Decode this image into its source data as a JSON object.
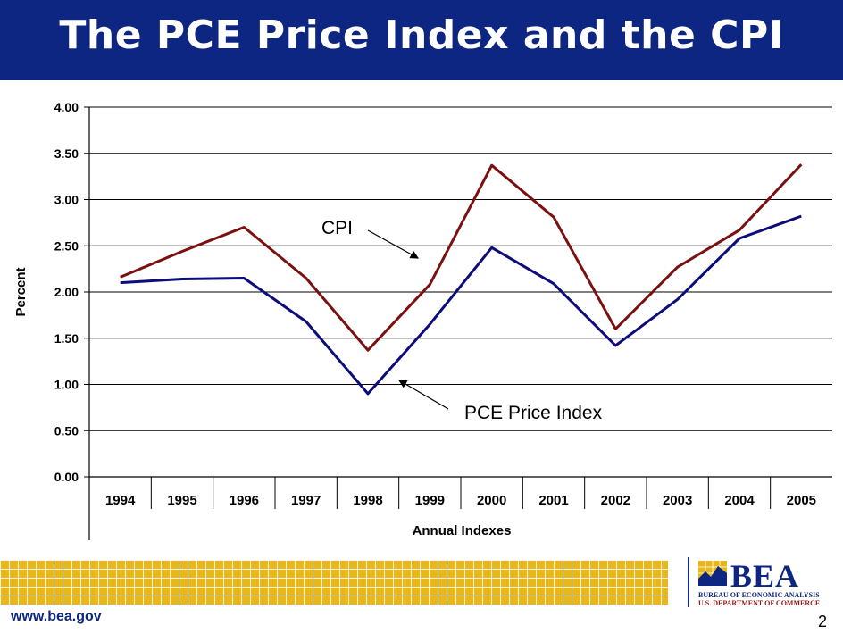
{
  "header": {
    "title": "The PCE Price Index and the CPI"
  },
  "chart_data": {
    "type": "line",
    "title": "",
    "xlabel": "Annual Indexes",
    "ylabel": "Percent",
    "categories": [
      "1994",
      "1995",
      "1996",
      "1997",
      "1998",
      "1999",
      "2000",
      "2001",
      "2002",
      "2003",
      "2004",
      "2005"
    ],
    "ylim": [
      0,
      4
    ],
    "yticks": [
      "0.00",
      "0.50",
      "1.00",
      "1.50",
      "2.00",
      "2.50",
      "3.00",
      "3.50",
      "4.00"
    ],
    "grid": true,
    "series": [
      {
        "name": "CPI",
        "color": "#7b1010",
        "values": [
          2.16,
          2.44,
          2.7,
          2.15,
          1.37,
          2.08,
          3.37,
          2.81,
          1.6,
          2.27,
          2.67,
          3.38
        ]
      },
      {
        "name": "PCE Price Index",
        "color": "#0d0d7a",
        "values": [
          2.1,
          2.14,
          2.15,
          1.68,
          0.9,
          1.65,
          2.48,
          2.09,
          1.42,
          1.92,
          2.58,
          2.82
        ]
      }
    ],
    "annotations": [
      {
        "text": "CPI",
        "series": "CPI"
      },
      {
        "text": "PCE Price Index",
        "series": "PCE Price Index"
      }
    ]
  },
  "footer": {
    "url": "www.bea.gov",
    "page_number": "2",
    "logo": {
      "word": "BEA",
      "line1": "BUREAU OF ECONOMIC ANALYSIS",
      "line2": "U.S. DEPARTMENT OF COMMERCE"
    }
  }
}
